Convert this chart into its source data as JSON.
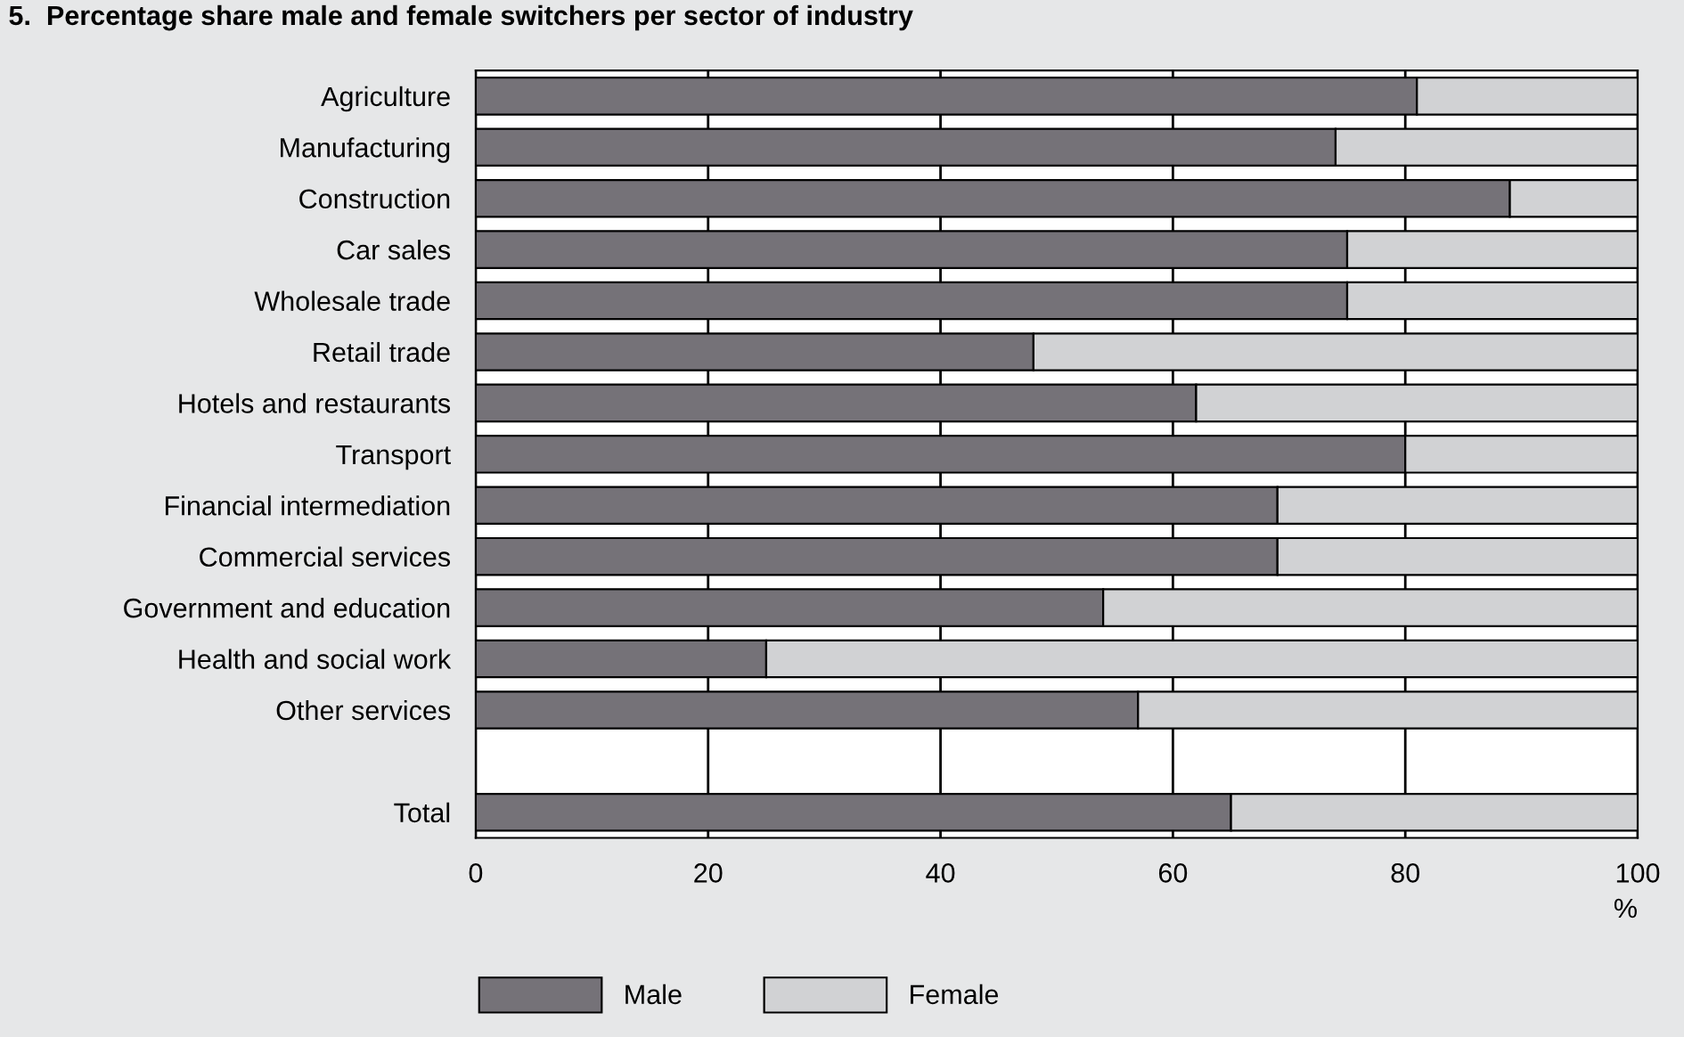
{
  "chart_data": {
    "type": "bar",
    "orientation": "horizontal",
    "stacked": true,
    "title": "5.  Percentage share male and female switchers per sector of industry",
    "xlabel": "%",
    "categories": [
      "Agriculture",
      "Manufacturing",
      "Construction",
      "Car sales",
      "Wholesale trade",
      "Retail trade",
      "Hotels and restaurants",
      "Transport",
      "Financial intermediation",
      "Commercial services",
      "Government and education",
      "Health and social work",
      "Other services",
      null,
      "Total"
    ],
    "series": [
      {
        "name": "Male",
        "color": "#757278",
        "values": [
          81,
          74,
          89,
          75,
          75,
          48,
          62,
          80,
          69,
          69,
          54,
          25,
          57,
          null,
          65
        ]
      },
      {
        "name": "Female",
        "color": "#d1d2d4",
        "values": [
          19,
          26,
          11,
          25,
          25,
          52,
          38,
          20,
          31,
          31,
          46,
          75,
          43,
          null,
          35
        ]
      }
    ],
    "xlim": [
      0,
      100
    ],
    "xticks": [
      0,
      20,
      40,
      60,
      80,
      100
    ],
    "grid": "x",
    "legend": "bottom"
  }
}
